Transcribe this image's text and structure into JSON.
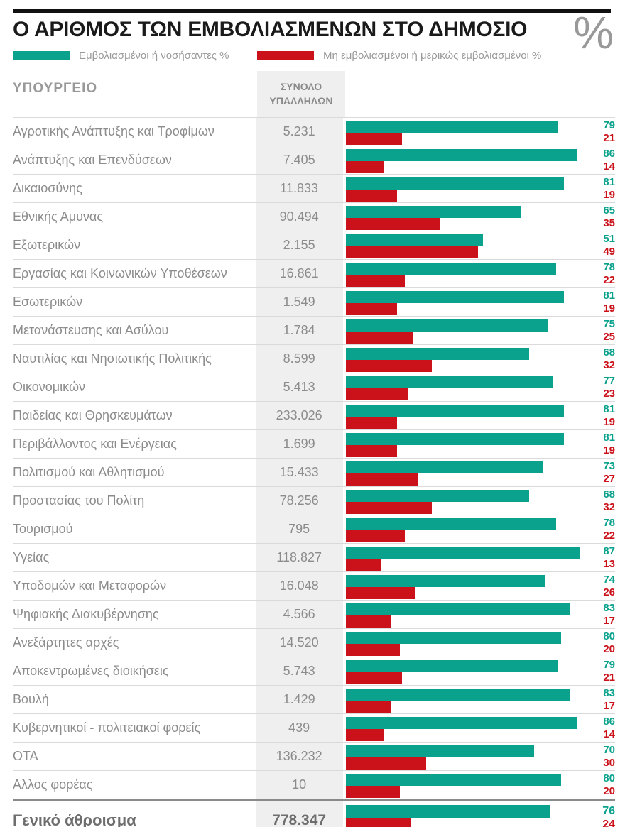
{
  "header": {
    "title": "Ο ΑΡΙΘΜΟΣ ΤΩΝ ΕΜΒΟΛΙΑΣΜΕΝΩΝ ΣΤΟ ΔΗΜΟΣΙΟ",
    "percent_symbol": "%"
  },
  "legend": {
    "vaccinated_label": "Εμβολιασμένοι ή νοσήσαντες %",
    "unvaccinated_label": "Μη εμβολιασμένοι ή μερικώς εμβολιασμένοι %"
  },
  "columns": {
    "ministry": "ΥΠΟΥΡΓΕΙΟ",
    "total_employees": "ΣΥΝΟΛΟ ΥΠΑΛΛΗΛΩΝ"
  },
  "colors": {
    "teal": "#0ba28d",
    "red": "#cb111a",
    "divider": "#8a8a8a",
    "row_line": "#dadada",
    "strip_bg": "#efefef"
  },
  "chart_data": {
    "type": "bar",
    "orientation": "horizontal",
    "title": "Ο ΑΡΙΘΜΟΣ ΤΩΝ ΕΜΒΟΛΙΑΣΜΕΝΩΝ ΣΤΟ ΔΗΜΟΣΙΟ",
    "x_max": 100,
    "series_names": [
      "Εμβολιασμένοι ή νοσήσαντες %",
      "Μη εμβολιασμένοι ή μερικώς εμβολιασμένοι %"
    ],
    "rows": [
      {
        "name": "Αγροτικής Ανάπτυξης και Τροφίμων",
        "total": "5.231",
        "vaccinated": 79,
        "unvaccinated": 21
      },
      {
        "name": "Ανάπτυξης και Επενδύσεων",
        "total": "7.405",
        "vaccinated": 86,
        "unvaccinated": 14
      },
      {
        "name": "Δικαιοσύνης",
        "total": "11.833",
        "vaccinated": 81,
        "unvaccinated": 19
      },
      {
        "name": "Εθνικής Αμυνας",
        "total": "90.494",
        "vaccinated": 65,
        "unvaccinated": 35
      },
      {
        "name": "Εξωτερικών",
        "total": "2.155",
        "vaccinated": 51,
        "unvaccinated": 49
      },
      {
        "name": "Εργασίας και Κοινωνικών Υποθέσεων",
        "total": "16.861",
        "vaccinated": 78,
        "unvaccinated": 22
      },
      {
        "name": "Εσωτερικών",
        "total": "1.549",
        "vaccinated": 81,
        "unvaccinated": 19
      },
      {
        "name": "Μετανάστευσης και Ασύλου",
        "total": "1.784",
        "vaccinated": 75,
        "unvaccinated": 25
      },
      {
        "name": "Ναυτιλίας και Νησιωτικής Πολιτικής",
        "total": "8.599",
        "vaccinated": 68,
        "unvaccinated": 32
      },
      {
        "name": "Οικονομικών",
        "total": "5.413",
        "vaccinated": 77,
        "unvaccinated": 23
      },
      {
        "name": "Παιδείας και Θρησκευμάτων",
        "total": "233.026",
        "vaccinated": 81,
        "unvaccinated": 19
      },
      {
        "name": "Περιβάλλοντος και Ενέργειας",
        "total": "1.699",
        "vaccinated": 81,
        "unvaccinated": 19
      },
      {
        "name": "Πολιτισμού και Αθλητισμού",
        "total": "15.433",
        "vaccinated": 73,
        "unvaccinated": 27
      },
      {
        "name": "Προστασίας του Πολίτη",
        "total": "78.256",
        "vaccinated": 68,
        "unvaccinated": 32
      },
      {
        "name": "Τουρισμού",
        "total": "795",
        "vaccinated": 78,
        "unvaccinated": 22
      },
      {
        "name": "Υγείας",
        "total": "118.827",
        "vaccinated": 87,
        "unvaccinated": 13
      },
      {
        "name": "Υποδομών και Μεταφορών",
        "total": "16.048",
        "vaccinated": 74,
        "unvaccinated": 26
      },
      {
        "name": "Ψηφιακής Διακυβέρνησης",
        "total": "4.566",
        "vaccinated": 83,
        "unvaccinated": 17
      },
      {
        "name": "Ανεξάρτητες αρχές",
        "total": "14.520",
        "vaccinated": 80,
        "unvaccinated": 20
      },
      {
        "name": "Αποκεντρωμένες διοικήσεις",
        "total": "5.743",
        "vaccinated": 79,
        "unvaccinated": 21
      },
      {
        "name": "Βουλή",
        "total": "1.429",
        "vaccinated": 83,
        "unvaccinated": 17
      },
      {
        "name": "Κυβερνητικοί - πολιτειακοί φορείς",
        "total": "439",
        "vaccinated": 86,
        "unvaccinated": 14
      },
      {
        "name": "ΟΤΑ",
        "total": "136.232",
        "vaccinated": 70,
        "unvaccinated": 30
      },
      {
        "name": "Αλλος φορέας",
        "total": "10",
        "vaccinated": 80,
        "unvaccinated": 20
      }
    ],
    "total_row": {
      "name": "Γενικό άθροισμα",
      "total": "778.347",
      "vaccinated": 76,
      "unvaccinated": 24
    }
  }
}
